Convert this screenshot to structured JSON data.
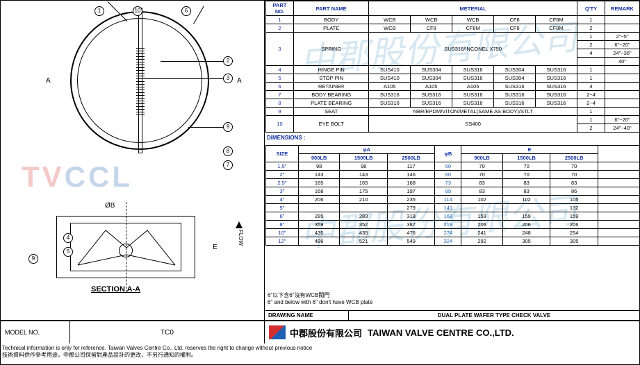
{
  "partsTable": {
    "headers": [
      "PART NO.",
      "PART NAME",
      "METERIAL",
      "",
      "",
      "",
      "",
      "Q'TY",
      "REMARK"
    ],
    "rows": [
      {
        "no": "1",
        "name": "BODY",
        "mats": [
          "WCB",
          "WCB",
          "WCB",
          "CF8",
          "CF8M"
        ],
        "qty": "1",
        "remark": ""
      },
      {
        "no": "2",
        "name": "PLATE",
        "mats": [
          "WCB",
          "CF8",
          "CF8M",
          "CF8",
          "CF8M"
        ],
        "qty": "2",
        "remark": ""
      }
    ],
    "spring": {
      "no": "3",
      "name": "SPRING",
      "mat": "SUS316/INCONEL X750",
      "qtyRemarks": [
        [
          "1",
          "2\"~5\""
        ],
        [
          "2",
          "6\"~20\""
        ],
        [
          "4",
          "24\"~36\""
        ],
        [
          "",
          "40\""
        ]
      ]
    },
    "rows2": [
      {
        "no": "4",
        "name": "HINGE PIN",
        "mats": [
          "SUS410",
          "SUS304",
          "SUS316",
          "SUS304",
          "SUS316"
        ],
        "qty": "1",
        "remark": ""
      },
      {
        "no": "5",
        "name": "STOP PIN",
        "mats": [
          "SUS410",
          "SUS304",
          "SUS316",
          "SUS304",
          "SUS316"
        ],
        "qty": "1",
        "remark": ""
      },
      {
        "no": "6",
        "name": "RETAINER",
        "mats": [
          "A105",
          "A105",
          "A105",
          "SUS316",
          "SUS316"
        ],
        "qty": "4",
        "remark": ""
      },
      {
        "no": "7",
        "name": "BODY BEARING",
        "mats": [
          "SUS316",
          "SUS316",
          "SUS316",
          "SUS316",
          "SUS316"
        ],
        "qty": "2~4",
        "remark": ""
      },
      {
        "no": "8",
        "name": "PLATE BEARING",
        "mats": [
          "SUS316",
          "SUS316",
          "SUS316",
          "SUS316",
          "SUS316"
        ],
        "qty": "2~4",
        "remark": ""
      },
      {
        "no": "9",
        "name": "SEAT",
        "matSpan": "NBR/EPDM/VITON/METAL(SAME AS BODY)/STLT",
        "qty": "1",
        "remark": ""
      }
    ],
    "eyebolt": {
      "no": "10",
      "name": "EYE BOLT",
      "mat": "SS400",
      "qtyRemarks": [
        [
          "1",
          "6\"~20\""
        ],
        [
          "2",
          "24\"~40\""
        ]
      ]
    }
  },
  "dimHeaders": {
    "size": "SIZE",
    "a": "φA",
    "b": "φB",
    "e": "E",
    "sub": [
      "900LB",
      "1500LB",
      "2500LB"
    ]
  },
  "dimLabel": "DIMENSIONS :",
  "dimRows": [
    {
      "size": "1.5\"",
      "a": [
        "98",
        "98",
        "117"
      ],
      "b": "60",
      "e": [
        "70",
        "70",
        "70"
      ]
    },
    {
      "size": "2\"",
      "a": [
        "143",
        "143",
        "146"
      ],
      "b": "60",
      "e": [
        "70",
        "70",
        "70"
      ]
    },
    {
      "size": "2.5\"",
      "a": [
        "165",
        "165",
        "168"
      ],
      "b": "73",
      "e": [
        "83",
        "83",
        "83"
      ]
    },
    {
      "size": "3\"",
      "a": [
        "168",
        "175",
        "197"
      ],
      "b": "89",
      "e": [
        "83",
        "83",
        "86"
      ]
    },
    {
      "size": "4\"",
      "a": [
        "206",
        "210",
        "235"
      ],
      "b": "114",
      "e": [
        "102",
        "102",
        "105"
      ]
    },
    {
      "size": "5\"",
      "a": [
        "",
        "",
        "279"
      ],
      "b": "141",
      "e": [
        "",
        "",
        "132"
      ]
    },
    {
      "size": "6\"",
      "a": [
        "285",
        "283",
        "318"
      ],
      "b": "168",
      "e": [
        "159",
        "159",
        "159"
      ]
    },
    {
      "size": "8\"",
      "a": [
        "359",
        "352",
        "387"
      ],
      "b": "219",
      "e": [
        "206",
        "206",
        "206"
      ]
    },
    {
      "size": "10\"",
      "a": [
        "435",
        "435",
        "476"
      ],
      "b": "274",
      "e": [
        "241",
        "248",
        "254"
      ]
    },
    {
      "size": "12\"",
      "a": [
        "498",
        "521",
        "549"
      ],
      "b": "324",
      "e": [
        "292",
        "305",
        "305"
      ]
    }
  ],
  "notes": {
    "cn": "6\"以下含6\"沒有WCB閥門",
    "en": "6\" and below with 6\" don't have WCB plate"
  },
  "drawingName": {
    "label": "DRAWING NAME",
    "value": "DUAL PLATE WAFER TYPE CHECK VALVE"
  },
  "titleBlock": {
    "modelLabel": "MODEL NO.",
    "modelValue": "TC0",
    "companyCN": "中郡股份有限公司",
    "companyEN": "TAIWAN VALVE CENTRE CO.,LTD."
  },
  "disclaimer": {
    "en": "Technical information is only for reference. Taiwan Valves Centre Co., Ltd. reserves the right to change without previous notice",
    "cn": "技術資料供作參考用途，中郡公司保留對產品設計的更改，不另行通知的權利。"
  },
  "callouts": [
    "1",
    "2",
    "3",
    "4",
    "5",
    "6",
    "7",
    "8",
    "9",
    "10"
  ],
  "sectionLabel": "SECTION A-A",
  "dimA": "A",
  "dimArrow": "A",
  "phiB": "ØB",
  "dimE": "E",
  "flow": "FLOW",
  "watermark": {
    "tv": "TV",
    "ccl": "CCL"
  },
  "watermark2": "中郡股份有限公司"
}
